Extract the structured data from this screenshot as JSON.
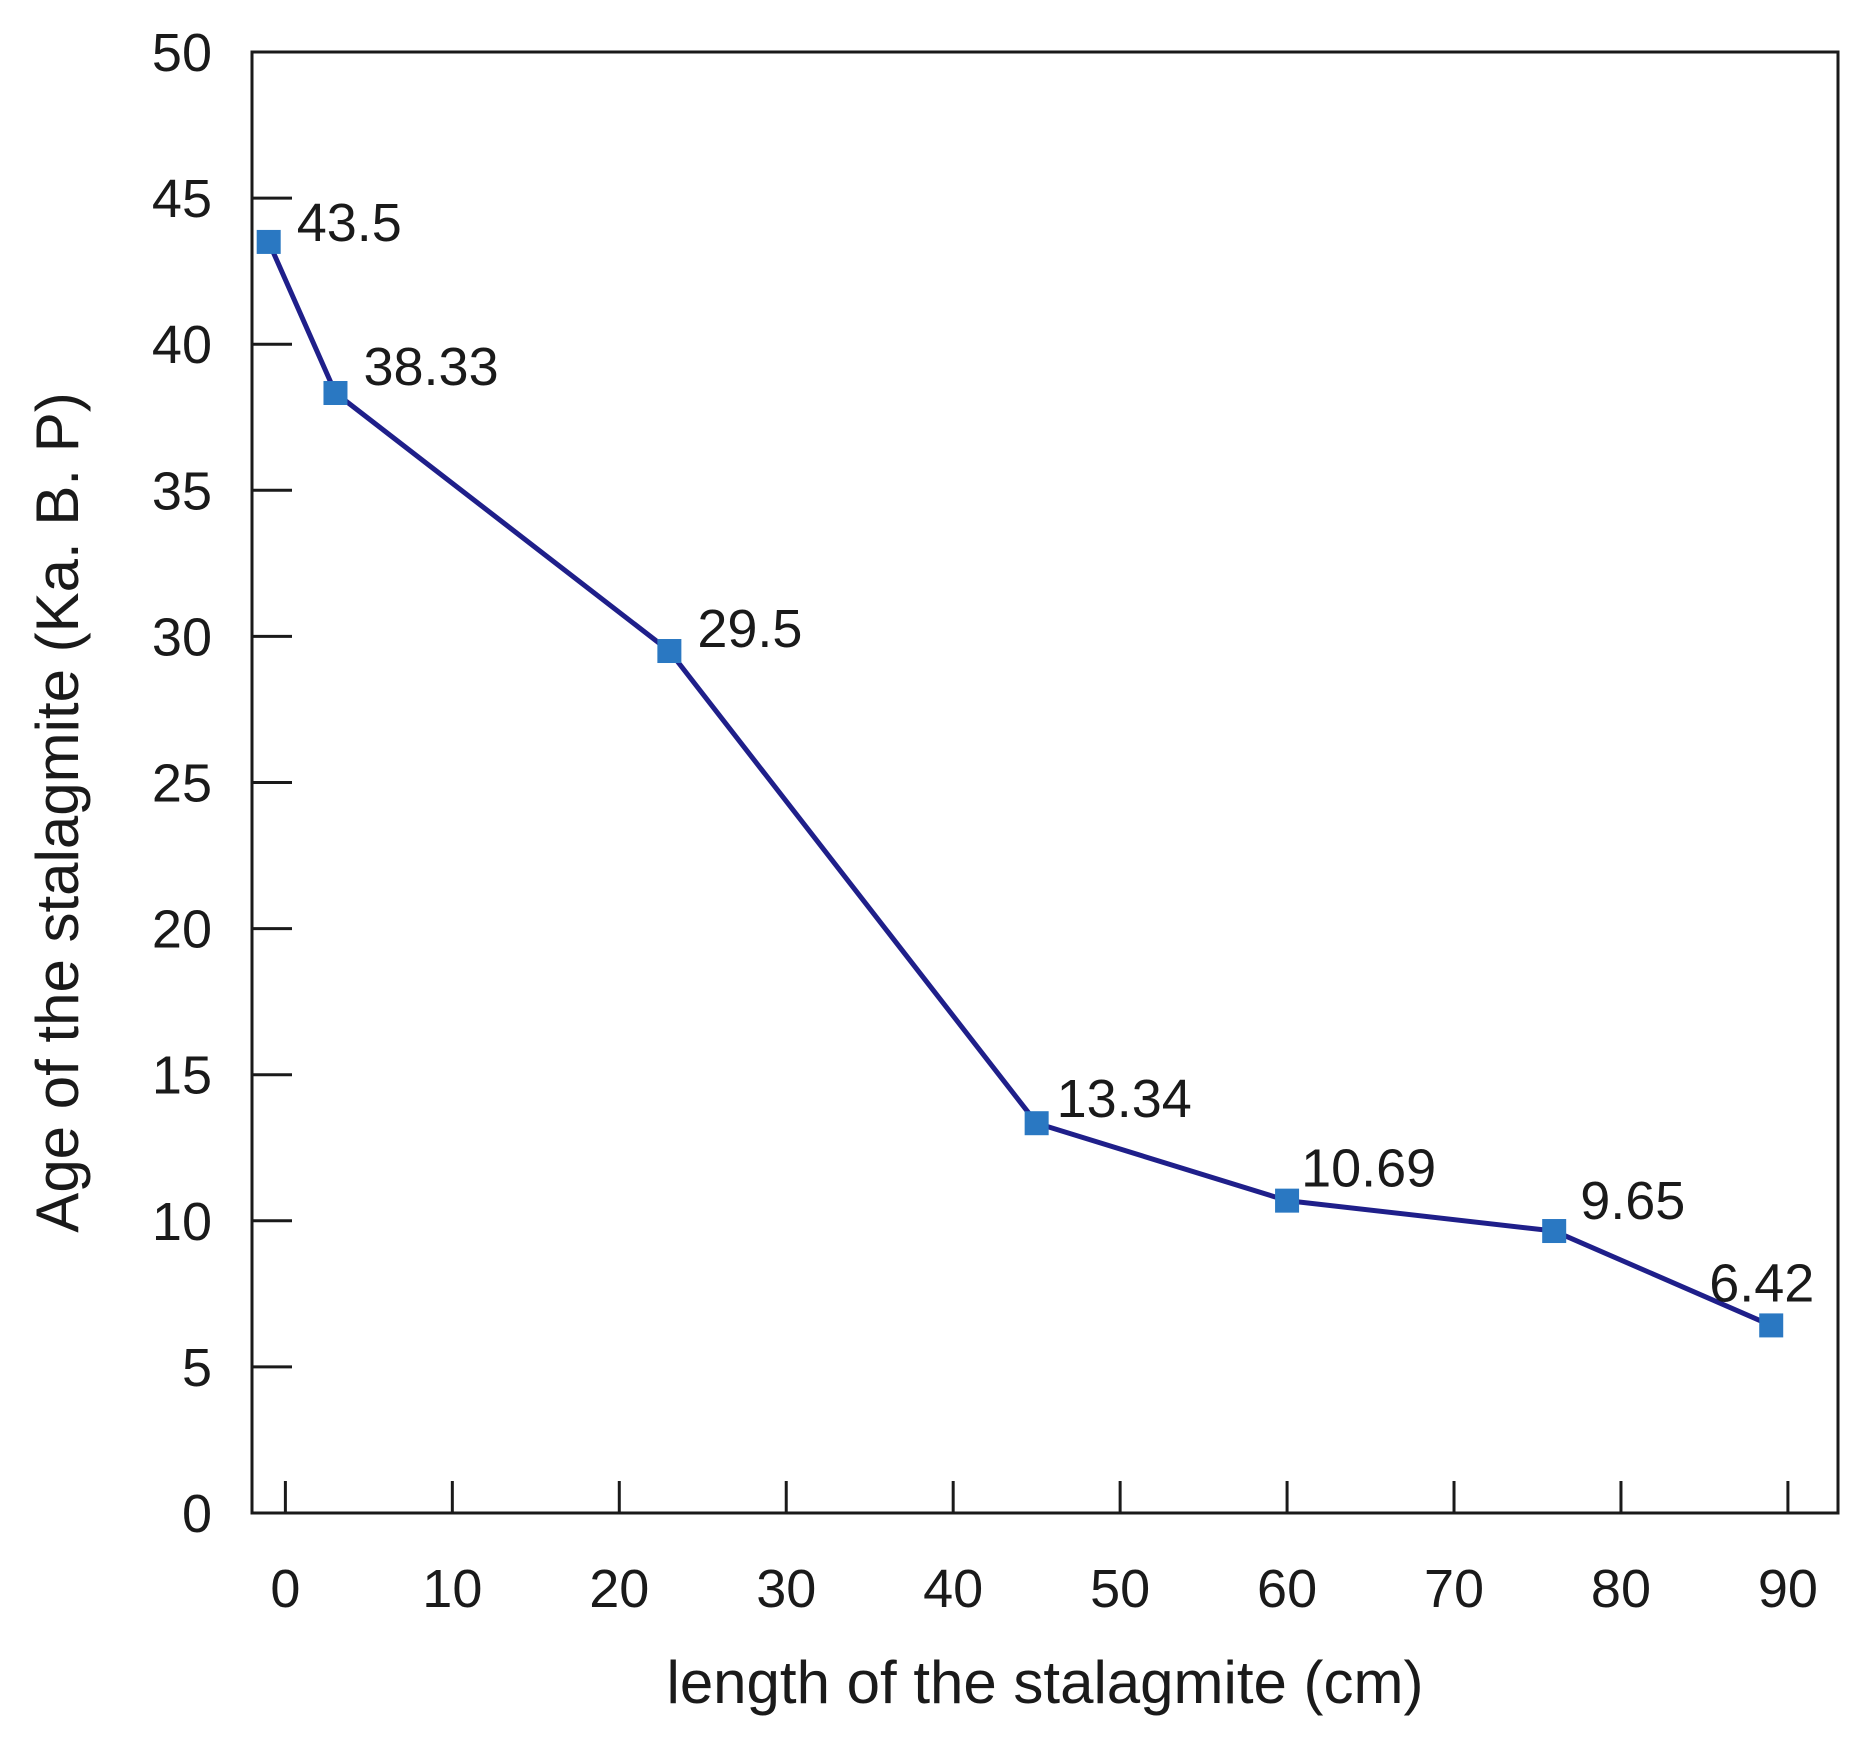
{
  "chart_data": {
    "type": "line",
    "title": "",
    "xlabel": "length of the stalagmite  (cm)",
    "ylabel": "Age of the stalagmite (Ka. B. P)",
    "xlim": [
      -2,
      93
    ],
    "ylim": [
      0,
      50
    ],
    "xticks": [
      0,
      10,
      20,
      30,
      40,
      50,
      60,
      70,
      80,
      90
    ],
    "yticks": [
      0,
      5,
      10,
      15,
      20,
      25,
      30,
      35,
      40,
      45,
      50
    ],
    "grid": false,
    "series": [
      {
        "name": "age",
        "x": [
          -1,
          3,
          23,
          45,
          60,
          76,
          89
        ],
        "y": [
          43.5,
          38.33,
          29.5,
          13.34,
          10.69,
          9.65,
          6.42
        ],
        "labels": [
          "43.5",
          "38.33",
          "29.5",
          "13.34",
          "10.69",
          "9.65",
          "6.42"
        ],
        "line_color": "#1f1f8a",
        "marker_color": "#2a78c2",
        "marker": "square"
      }
    ]
  }
}
